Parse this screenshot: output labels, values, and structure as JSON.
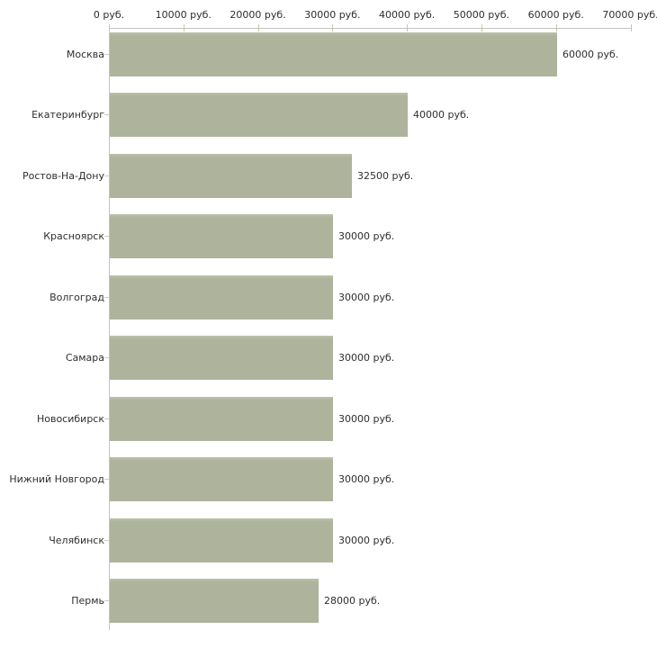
{
  "chart_data": {
    "type": "bar",
    "orientation": "horizontal",
    "title": "",
    "categories": [
      "Москва",
      "Екатеринбург",
      "Ростов-На-Дону",
      "Красноярск",
      "Волгоград",
      "Самара",
      "Новосибирск",
      "Нижний Новгород",
      "Челябинск",
      "Пермь"
    ],
    "values": [
      60000,
      40000,
      32500,
      30000,
      30000,
      30000,
      30000,
      30000,
      30000,
      28000
    ],
    "value_labels": [
      "60000 руб.",
      "40000 руб.",
      "32500 руб.",
      "30000 руб.",
      "30000 руб.",
      "30000 руб.",
      "30000 руб.",
      "30000 руб.",
      "30000 руб.",
      "28000 руб."
    ],
    "x_axis": {
      "min": 0,
      "max": 70000,
      "tick_interval": 10000,
      "position": "top",
      "tick_labels": [
        "0 руб.",
        "10000 руб.",
        "20000 руб.",
        "30000 руб.",
        "40000 руб.",
        "50000 руб.",
        "60000 руб.",
        "70000 руб."
      ]
    },
    "grid": false,
    "legend": false,
    "colors": {
      "bar": "#aeb39b",
      "bar_highlight": "#bcc1a9",
      "axis_line": "#c3c3c3",
      "x_tick": "#c6c9a0",
      "category_tick": "#cfd2b8",
      "text": "#2e2e2e",
      "background": "#ffffff"
    }
  }
}
